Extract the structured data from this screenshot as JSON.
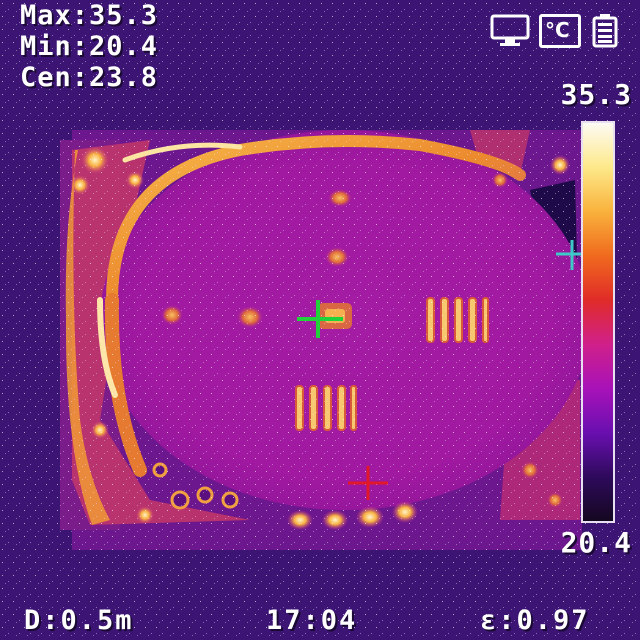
{
  "readouts": {
    "max": "Max:35.3",
    "min": "Min:20.4",
    "center": "Cen:23.8"
  },
  "scale": {
    "max_label": "35.3",
    "min_label": "20.4",
    "gradient_colors": [
      "#fdfbf4",
      "#fde98a",
      "#f9b23c",
      "#f06a1e",
      "#e02c28",
      "#d0208a",
      "#a812b8",
      "#6a0fb0",
      "#2e0a5c",
      "#140820"
    ]
  },
  "status_icons": [
    "monitor-icon",
    "celsius-icon",
    "battery-icon"
  ],
  "status_icon_text": {
    "celsius": "°C"
  },
  "footer": {
    "distance": "D:0.5m",
    "time": "17:04",
    "emissivity": "ε:0.97"
  },
  "markers": {
    "center_color": "#22d23a",
    "max_color": "#3fc8c8",
    "min_color": "#e0182a"
  },
  "colors": {
    "background": "#3a1470",
    "plate": "#a0199e",
    "hot": "#f6a42a",
    "hotter": "#fde7a0"
  }
}
